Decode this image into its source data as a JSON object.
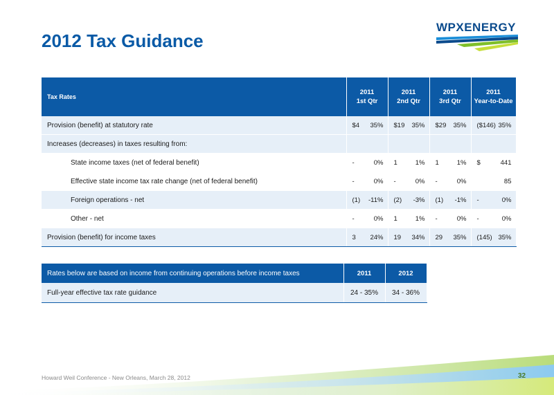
{
  "title": "2012 Tax Guidance",
  "logo": {
    "text": "WPXENERGY",
    "colors": {
      "navy": "#0a4a8c",
      "blue": "#1b8ed8",
      "green": "#7fbf2a"
    }
  },
  "tax_table": {
    "header": {
      "label": "Tax Rates",
      "columns": [
        {
          "year": "2011",
          "period": "1st Qtr"
        },
        {
          "year": "2011",
          "period": "2nd Qtr"
        },
        {
          "year": "2011",
          "period": "3rd Qtr"
        },
        {
          "year": "2011",
          "period": "Year-to-Date"
        }
      ]
    },
    "rows": [
      {
        "label": "Provision (benefit) at statutory rate",
        "indent": false,
        "style": "alt",
        "cells": [
          [
            "$4",
            "35%"
          ],
          [
            "$19",
            "35%"
          ],
          [
            "$29",
            "35%"
          ],
          [
            "($146)",
            "35%"
          ]
        ]
      },
      {
        "label": "Increases (decreases) in taxes resulting from:",
        "indent": false,
        "style": "alt",
        "cells": [
          [
            "",
            ""
          ],
          [
            "",
            ""
          ],
          [
            "",
            ""
          ],
          [
            "",
            ""
          ]
        ]
      },
      {
        "label": "State income taxes (net of federal benefit)",
        "indent": true,
        "style": "plain",
        "cells": [
          [
            "-",
            "0%"
          ],
          [
            "1",
            "1%"
          ],
          [
            "1",
            "1%"
          ],
          [
            "$",
            "441"
          ]
        ]
      },
      {
        "label": "Effective state income tax rate change (net of federal benefit)",
        "indent": true,
        "style": "plain",
        "cells": [
          [
            "-",
            "0%"
          ],
          [
            "-",
            "0%"
          ],
          [
            "-",
            "0%"
          ],
          [
            "",
            "85"
          ]
        ]
      },
      {
        "label": "Foreign operations - net",
        "indent": true,
        "style": "alt",
        "cells": [
          [
            "(1)",
            "-11%"
          ],
          [
            "(2)",
            "-3%"
          ],
          [
            "(1)",
            "-1%"
          ],
          [
            "-",
            "0%"
          ]
        ]
      },
      {
        "label": "Other - net",
        "indent": true,
        "style": "plain",
        "cells": [
          [
            "-",
            "0%"
          ],
          [
            "1",
            "1%"
          ],
          [
            "-",
            "0%"
          ],
          [
            "-",
            "0%"
          ]
        ]
      },
      {
        "label": "Provision (benefit) for income taxes",
        "indent": false,
        "style": "alt total",
        "cells": [
          [
            "3",
            "24%"
          ],
          [
            "19",
            "34%"
          ],
          [
            "29",
            "35%"
          ],
          [
            "(145)",
            "35%"
          ]
        ]
      }
    ]
  },
  "guidance_table": {
    "header": {
      "label": "Rates below are based on income from continuing operations before income taxes",
      "columns": [
        "2011",
        "2012"
      ]
    },
    "row": {
      "label": "Full-year effective tax rate guidance",
      "values": [
        "24 - 35%",
        "34 - 36%"
      ]
    }
  },
  "footer": {
    "text": "Howard Weil Conference - New Orleans, March 28, 2012",
    "page_number": "32"
  }
}
